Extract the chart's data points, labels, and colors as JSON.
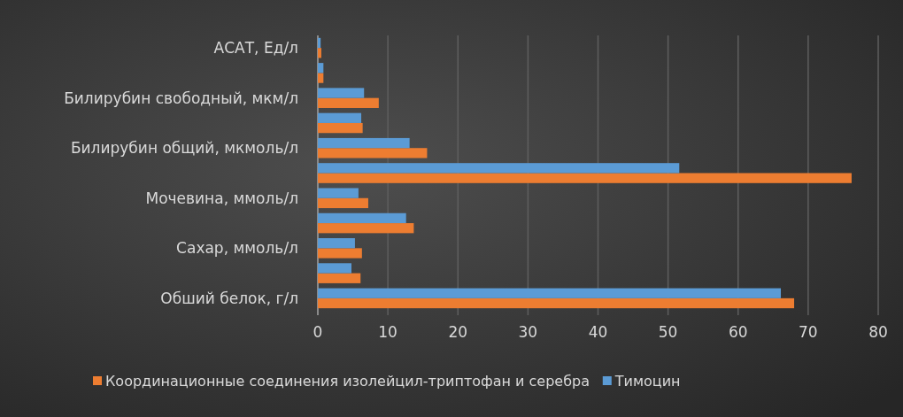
{
  "chart_data": {
    "type": "bar",
    "orientation": "horizontal",
    "categories": [
      "АСАТ, Ед/л",
      null,
      "Билирубин свободный, мкм/л",
      null,
      "Билирубин общий, мкмоль/л",
      null,
      "Мочевина, ммоль/л",
      null,
      "Сахар, ммоль/л",
      null,
      "Обший белок, г/л"
    ],
    "series": [
      {
        "name": "Координационные соединения изолейцил-триптофан и серебра",
        "color": "#ed7d31",
        "values": [
          0.5,
          0.8,
          8.7,
          6.4,
          15.6,
          76.2,
          7.2,
          13.7,
          6.3,
          6.1,
          68.0
        ]
      },
      {
        "name": "Тимоцин",
        "color": "#5b9bd5",
        "values": [
          0.4,
          0.8,
          6.6,
          6.2,
          13.1,
          51.6,
          5.8,
          12.6,
          5.3,
          4.8,
          66.1
        ]
      }
    ],
    "xlim": [
      0,
      80
    ],
    "xticks": [
      0,
      10,
      20,
      30,
      40,
      50,
      60,
      70,
      80
    ],
    "grid": "x",
    "legend": "bottom"
  }
}
